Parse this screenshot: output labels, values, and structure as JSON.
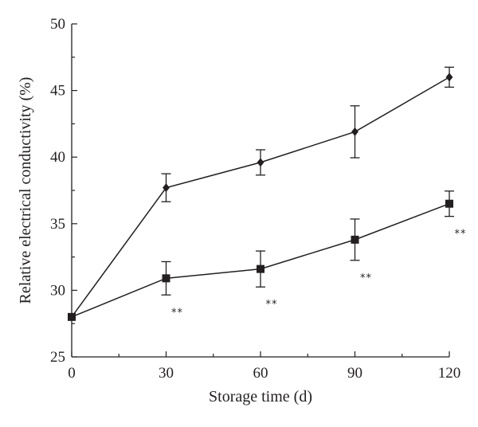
{
  "chart_data": {
    "type": "line",
    "title": "",
    "xlabel": "Storage time (d)",
    "ylabel": "Relative electrical conductivity (%)",
    "xlim": [
      0,
      120
    ],
    "ylim": [
      25,
      50
    ],
    "xticks": [
      0,
      30,
      60,
      90,
      120
    ],
    "yticks": [
      25,
      30,
      35,
      40,
      45,
      50
    ],
    "grid": false,
    "legend": "none",
    "series": [
      {
        "marker": "diamond",
        "x": [
          0,
          30,
          60,
          90,
          120
        ],
        "values": [
          28.0,
          37.7,
          39.6,
          41.9,
          46.0
        ],
        "error": [
          0.0,
          1.05,
          0.95,
          1.95,
          0.75
        ]
      },
      {
        "marker": "square",
        "x": [
          0,
          30,
          60,
          90,
          120
        ],
        "values": [
          28.0,
          30.9,
          31.6,
          33.8,
          36.5
        ],
        "error": [
          0.0,
          1.25,
          1.35,
          1.55,
          0.95
        ]
      }
    ],
    "annotations": [
      {
        "text": "**",
        "x": 30
      },
      {
        "text": "**",
        "x": 60
      },
      {
        "text": "**",
        "x": 90
      },
      {
        "text": "**",
        "x": 120
      }
    ]
  }
}
